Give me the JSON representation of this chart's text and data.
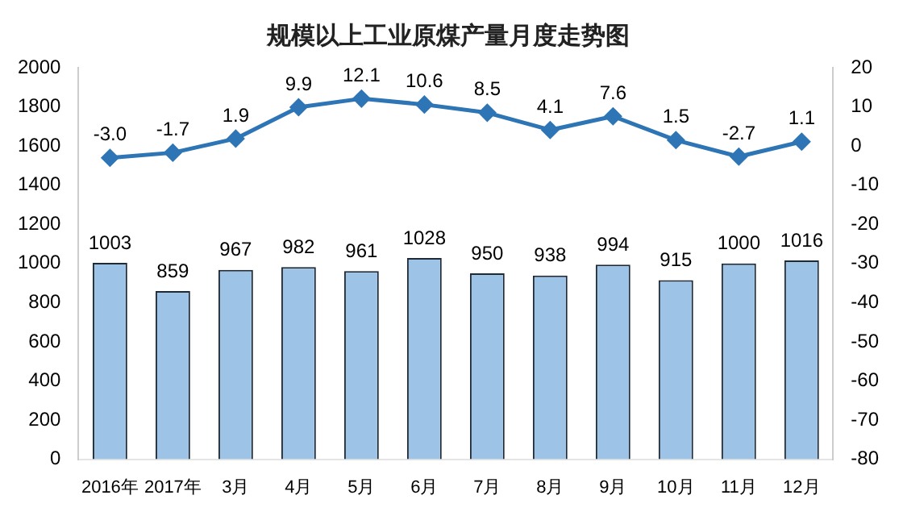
{
  "chart_data": {
    "type": "bar",
    "title": "规模以上工业原煤产量月度走势图",
    "categories": [
      "2016年",
      "2017年",
      "3月",
      "4月",
      "5月",
      "6月",
      "7月",
      "8月",
      "9月",
      "10月",
      "11月",
      "12月"
    ],
    "series": [
      {
        "color": "#9dc3e6",
        "values": [
          1003,
          859,
          967,
          982,
          961,
          1028,
          950,
          938,
          994,
          915,
          1000,
          1016
        ],
        "value_labels": [
          "1003",
          "859",
          "967",
          "982",
          "961",
          "1028",
          "950",
          "938",
          "994",
          "915",
          "1000",
          "1016"
        ]
      },
      {
        "type": "line",
        "axis": "y2",
        "color": "#2e75b6",
        "marker": "diamond",
        "values": [
          -3.0,
          -1.7,
          1.9,
          9.9,
          12.1,
          10.6,
          8.5,
          4.1,
          7.6,
          1.5,
          -2.7,
          1.1
        ],
        "value_labels": [
          "-3.0",
          "-1.7",
          "1.9",
          "9.9",
          "12.1",
          "10.6",
          "8.5",
          "4.1",
          "7.6",
          "1.5",
          "-2.7",
          "1.1"
        ]
      }
    ],
    "ylim": [
      0,
      2000
    ],
    "yticks": [
      0,
      200,
      400,
      600,
      800,
      1000,
      1200,
      1400,
      1600,
      1800,
      2000
    ],
    "y2lim": [
      -80,
      20
    ],
    "y2ticks": [
      -80,
      -70,
      -60,
      -50,
      -40,
      -30,
      -20,
      -10,
      0,
      10,
      20
    ],
    "grid": false,
    "legend": false
  }
}
